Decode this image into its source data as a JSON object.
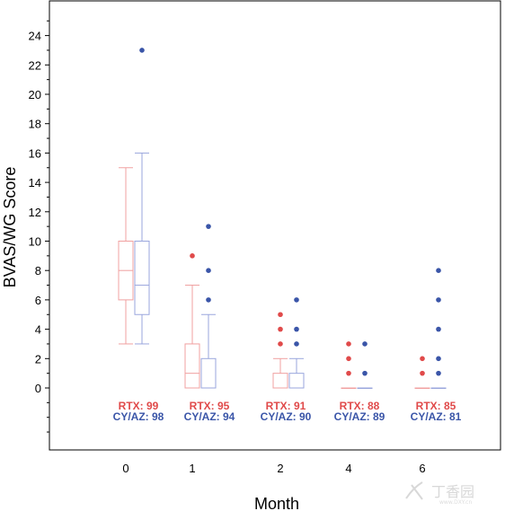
{
  "chart_data": {
    "type": "box",
    "ylabel": "BVAS/WG Score",
    "xlabel": "Month",
    "ylim": [
      -4.5,
      26
    ],
    "yticks": [
      0,
      2,
      4,
      6,
      8,
      10,
      12,
      14,
      16,
      18,
      20,
      22,
      24
    ],
    "categories": [
      "0",
      "1",
      "2",
      "4",
      "6"
    ],
    "grid": false,
    "series": [
      {
        "name": "RTX",
        "color": "#e04a4a",
        "boxes": [
          {
            "min": 3,
            "q1": 6,
            "median": 8,
            "q3": 10,
            "max": 15,
            "outliers": []
          },
          {
            "min": 0,
            "q1": 0,
            "median": 1,
            "q3": 3,
            "max": 7,
            "outliers": [
              9
            ]
          },
          {
            "min": 0,
            "q1": 0,
            "median": 0,
            "q3": 1,
            "max": 2,
            "outliers": [
              3,
              4,
              5
            ]
          },
          {
            "min": 0,
            "q1": 0,
            "median": 0,
            "q3": 0,
            "max": 0,
            "outliers": [
              1,
              2,
              3
            ]
          },
          {
            "min": 0,
            "q1": 0,
            "median": 0,
            "q3": 0,
            "max": 0,
            "outliers": [
              1,
              2
            ]
          }
        ],
        "n_labels": [
          "RTX: 99",
          "RTX: 95",
          "RTX: 91",
          "RTX: 88",
          "RTX: 85"
        ]
      },
      {
        "name": "CY/AZ",
        "color": "#3355aa",
        "boxes": [
          {
            "min": 3,
            "q1": 5,
            "median": 7,
            "q3": 10,
            "max": 16,
            "outliers": [
              23
            ]
          },
          {
            "min": 0,
            "q1": 0,
            "median": 0,
            "q3": 2,
            "max": 5,
            "outliers": [
              6,
              8,
              11
            ]
          },
          {
            "min": 0,
            "q1": 0,
            "median": 0,
            "q3": 1,
            "max": 2,
            "outliers": [
              3,
              4,
              6
            ]
          },
          {
            "min": 0,
            "q1": 0,
            "median": 0,
            "q3": 0,
            "max": 0,
            "outliers": [
              1,
              3
            ]
          },
          {
            "min": 0,
            "q1": 0,
            "median": 0,
            "q3": 0,
            "max": 0,
            "outliers": [
              1,
              2,
              4,
              6,
              8
            ]
          }
        ],
        "n_labels": [
          "CY/AZ: 98",
          "CY/AZ: 94",
          "CY/AZ: 90",
          "CY/AZ: 89",
          "CY/AZ: 81"
        ]
      }
    ]
  },
  "colors": {
    "rtx_box": "#f0a0a0",
    "cyaz_box": "#9aa6dd",
    "rtx_text": "#e04a4a",
    "cyaz_text": "#3a55a8"
  },
  "watermark": {
    "text": "丁香园",
    "sub": "www.DXY.cn"
  }
}
